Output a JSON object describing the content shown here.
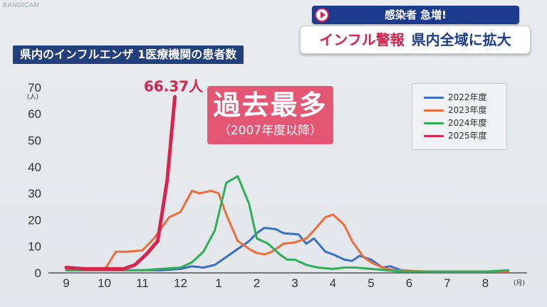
{
  "watermark": "BANDICAM",
  "headline": {
    "top": "感染者 急増!",
    "main_red": "インフル警報",
    "main_navy": "県内全域に拡大"
  },
  "chart_title": "県内のインフルエンザ 1医療機関の患者数",
  "badge": {
    "main": "過去最多",
    "sub": "（2007年度以降）"
  },
  "peak_label": "66.37人",
  "colors": {
    "2022": "#3a6fc2",
    "2023": "#ef6d3a",
    "2024": "#2fae5a",
    "2025": "#d9244f"
  },
  "chart_data": {
    "type": "line",
    "title": "県内のインフルエンザ 1医療機関の患者数",
    "xlabel": "(月)",
    "ylabel": "(人)",
    "x_ticks": [
      "9",
      "10",
      "11",
      "12",
      "1",
      "2",
      "3",
      "4",
      "5",
      "6",
      "7",
      "8"
    ],
    "y_ticks": [
      0,
      10,
      20,
      30,
      40,
      50,
      60,
      70
    ],
    "ylim": [
      0,
      72
    ],
    "xlim": [
      0,
      11.6
    ],
    "grid": false,
    "legend_position": "top-right",
    "series": [
      {
        "name": "2022年度",
        "color_key": "2022",
        "points": [
          [
            0,
            1
          ],
          [
            1,
            1
          ],
          [
            2,
            1
          ],
          [
            2.5,
            1
          ],
          [
            3,
            1.5
          ],
          [
            3.3,
            2.5
          ],
          [
            3.6,
            2
          ],
          [
            3.9,
            3
          ],
          [
            4.2,
            6
          ],
          [
            4.5,
            9
          ],
          [
            4.8,
            12
          ],
          [
            5,
            15
          ],
          [
            5.2,
            17
          ],
          [
            5.5,
            16.5
          ],
          [
            5.7,
            15
          ],
          [
            6.1,
            14.5
          ],
          [
            6.3,
            11
          ],
          [
            6.5,
            13
          ],
          [
            6.8,
            8
          ],
          [
            7,
            7
          ],
          [
            7.3,
            5
          ],
          [
            7.5,
            4.5
          ],
          [
            7.7,
            6.5
          ],
          [
            8,
            5
          ],
          [
            8.3,
            2
          ],
          [
            8.5,
            2.5
          ],
          [
            8.8,
            1
          ],
          [
            9.3,
            0.5
          ],
          [
            10,
            0.5
          ],
          [
            11,
            0.5
          ],
          [
            11.6,
            0.5
          ]
        ]
      },
      {
        "name": "2023年度",
        "color_key": "2023",
        "points": [
          [
            0,
            1
          ],
          [
            1,
            1
          ],
          [
            1.3,
            8
          ],
          [
            1.6,
            8
          ],
          [
            2,
            8.5
          ],
          [
            2.3,
            13
          ],
          [
            2.5,
            17
          ],
          [
            2.7,
            21
          ],
          [
            3,
            23
          ],
          [
            3.3,
            31
          ],
          [
            3.5,
            30
          ],
          [
            3.8,
            31
          ],
          [
            4,
            30
          ],
          [
            4.2,
            22
          ],
          [
            4.5,
            12
          ],
          [
            4.8,
            9
          ],
          [
            5,
            7.5
          ],
          [
            5.2,
            7
          ],
          [
            5.4,
            8
          ],
          [
            5.7,
            11
          ],
          [
            6,
            11.5
          ],
          [
            6.3,
            13
          ],
          [
            6.5,
            16
          ],
          [
            6.8,
            21
          ],
          [
            7,
            22
          ],
          [
            7.3,
            18
          ],
          [
            7.5,
            12
          ],
          [
            7.8,
            6
          ],
          [
            8,
            4
          ],
          [
            8.3,
            2
          ],
          [
            8.6,
            1
          ],
          [
            9.5,
            0.5
          ],
          [
            10,
            0.5
          ],
          [
            11,
            0.5
          ],
          [
            11.6,
            0.5
          ]
        ]
      },
      {
        "name": "2024年度",
        "color_key": "2024",
        "points": [
          [
            0,
            1
          ],
          [
            1,
            1
          ],
          [
            2,
            1
          ],
          [
            3,
            2
          ],
          [
            3.3,
            4
          ],
          [
            3.6,
            8
          ],
          [
            3.9,
            16
          ],
          [
            4.2,
            34
          ],
          [
            4.5,
            36.5
          ],
          [
            4.8,
            26
          ],
          [
            5,
            13
          ],
          [
            5.3,
            11
          ],
          [
            5.6,
            7
          ],
          [
            5.8,
            5
          ],
          [
            6,
            5
          ],
          [
            6.3,
            3
          ],
          [
            6.6,
            2
          ],
          [
            7,
            1.5
          ],
          [
            7.3,
            2
          ],
          [
            7.6,
            2
          ],
          [
            8,
            1.5
          ],
          [
            8.4,
            1
          ],
          [
            8.8,
            0.5
          ],
          [
            9.3,
            0.5
          ],
          [
            10,
            0.5
          ],
          [
            11,
            0.5
          ],
          [
            11.6,
            1
          ]
        ]
      },
      {
        "name": "2025年度",
        "color_key": "2025",
        "points": [
          [
            0,
            2
          ],
          [
            0.5,
            1.5
          ],
          [
            1,
            1.5
          ],
          [
            1.5,
            1.5
          ],
          [
            1.8,
            3
          ],
          [
            2.1,
            7
          ],
          [
            2.4,
            12
          ],
          [
            2.65,
            35
          ],
          [
            2.85,
            66.37
          ]
        ]
      }
    ]
  }
}
